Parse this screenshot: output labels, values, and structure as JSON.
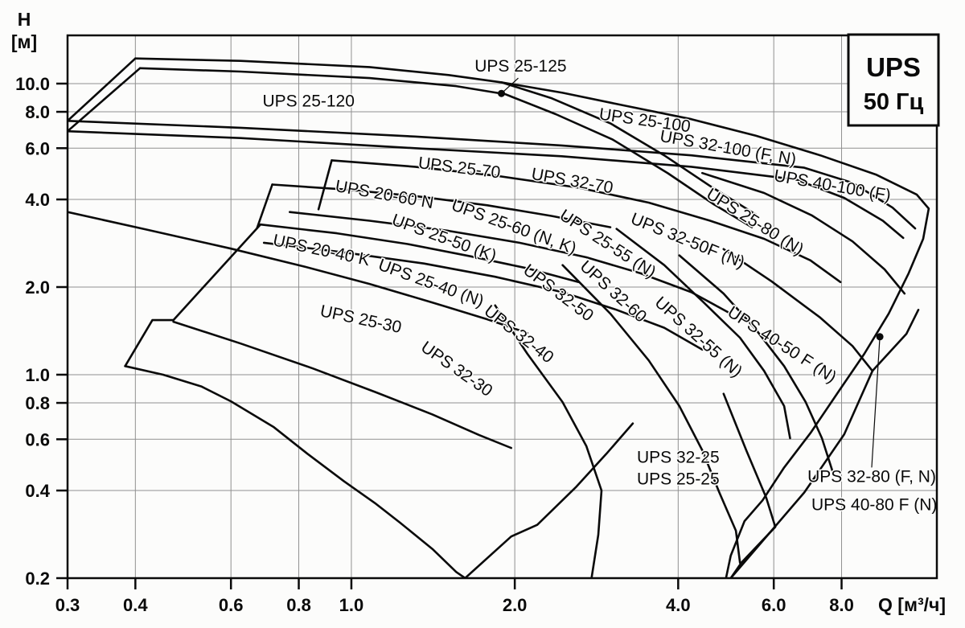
{
  "title_box": {
    "line1": "UPS",
    "line2": "50 Гц"
  },
  "axes": {
    "x": {
      "title": "Q [м³/ч]",
      "scale": "log",
      "ticks": [
        0.3,
        0.4,
        0.6,
        0.8,
        1.0,
        2.0,
        4.0,
        6.0,
        8.0
      ],
      "tick_labels": [
        "0.3",
        "0.4",
        "0.6",
        "0.8",
        "1.0",
        "2.0",
        "4.0",
        "6.0",
        "8.0"
      ]
    },
    "y": {
      "title_line1": "H",
      "title_line2": "[м]",
      "scale": "log",
      "ticks": [
        10.0,
        8.0,
        6.0,
        4.0,
        2.0,
        1.0,
        0.8,
        0.6,
        0.4,
        0.2
      ],
      "tick_labels": [
        "10.0",
        "8.0",
        "6.0",
        "4.0",
        "2.0",
        "1.0",
        "0.8",
        "0.6",
        "0.4",
        "0.2"
      ]
    }
  },
  "chart_data": {
    "type": "line",
    "title": "UPS 50 Гц",
    "xlabel": "Q [м³/ч]",
    "ylabel": "H [м]",
    "x_range": [
      0.3,
      12.2
    ],
    "y_range": [
      0.2,
      14.7
    ],
    "grid": true,
    "series": [
      {
        "name": "left-diagonal-25-120",
        "points": [
          [
            0.3,
            7.45
          ],
          [
            0.4,
            12.2
          ]
        ]
      },
      {
        "name": "left-diagonal-25-125",
        "points": [
          [
            0.3,
            6.86
          ],
          [
            0.408,
            11.3
          ]
        ]
      },
      {
        "name": "top-boundary-25-120",
        "points": [
          [
            0.4,
            12.2
          ],
          [
            0.625,
            11.97
          ],
          [
            1.08,
            11.4
          ],
          [
            1.51,
            10.7
          ],
          [
            1.89,
            10.1
          ],
          [
            2.34,
            8.9
          ],
          [
            3.0,
            7.3
          ],
          [
            3.77,
            5.67
          ],
          [
            4.58,
            4.45
          ],
          [
            5.56,
            3.55
          ]
        ]
      },
      {
        "name": "top-boundary-25-125",
        "points": [
          [
            0.408,
            11.3
          ],
          [
            0.625,
            11.0
          ],
          [
            1.08,
            10.45
          ],
          [
            1.56,
            9.8
          ],
          [
            1.92,
            9.2
          ],
          [
            2.38,
            7.85
          ],
          [
            3.03,
            6.42
          ],
          [
            3.83,
            4.92
          ],
          [
            4.65,
            3.85
          ],
          [
            5.47,
            3.21
          ]
        ]
      },
      {
        "name": "upper-band-25-70-top",
        "points": [
          [
            0.3,
            7.45
          ],
          [
            0.625,
            7.05
          ],
          [
            1.31,
            6.58
          ],
          [
            2.44,
            6.13
          ],
          [
            4.23,
            5.67
          ],
          [
            6.83,
            5.14
          ],
          [
            8.38,
            4.56
          ],
          [
            9.93,
            3.75
          ],
          [
            10.93,
            3.18
          ]
        ]
      },
      {
        "name": "upper-band-25-70-bottom",
        "points": [
          [
            0.3,
            6.86
          ],
          [
            0.625,
            6.5
          ],
          [
            1.31,
            6.0
          ],
          [
            2.44,
            5.63
          ],
          [
            4.23,
            5.18
          ],
          [
            6.6,
            4.68
          ],
          [
            8.09,
            4.05
          ],
          [
            9.53,
            3.38
          ],
          [
            10.39,
            2.95
          ]
        ]
      },
      {
        "name": "outer-right-boundary-25-100-40-100",
        "points": [
          [
            1.89,
            10.1
          ],
          [
            2.45,
            9.3
          ],
          [
            3.19,
            8.4
          ],
          [
            4.23,
            7.55
          ],
          [
            5.56,
            6.62
          ],
          [
            7.31,
            5.67
          ],
          [
            9.28,
            4.86
          ],
          [
            11.0,
            4.16
          ],
          [
            11.58,
            3.72
          ],
          [
            11.31,
            2.93
          ],
          [
            10.63,
            2.23
          ],
          [
            9.77,
            1.62
          ],
          [
            8.81,
            1.18
          ],
          [
            7.88,
            0.87
          ],
          [
            7.01,
            0.63
          ],
          [
            6.27,
            0.48
          ],
          [
            5.72,
            0.37
          ],
          [
            5.3,
            0.314
          ],
          [
            5.0,
            0.239
          ],
          [
            4.9,
            0.2
          ]
        ]
      },
      {
        "name": "left-diagonal-25-70",
        "points": [
          [
            0.87,
            3.7
          ],
          [
            0.92,
            5.45
          ]
        ]
      },
      {
        "name": "band-32-70-bottom",
        "points": [
          [
            0.92,
            5.45
          ],
          [
            1.31,
            5.18
          ],
          [
            1.84,
            4.83
          ],
          [
            2.62,
            4.39
          ],
          [
            3.53,
            3.9
          ],
          [
            4.58,
            3.38
          ],
          [
            5.76,
            2.93
          ],
          [
            7.01,
            2.47
          ],
          [
            7.96,
            2.08
          ]
        ]
      },
      {
        "name": "left-diagonal-20-60",
        "points": [
          [
            0.67,
            3.18
          ],
          [
            0.715,
            4.5
          ]
        ]
      },
      {
        "name": "band-20-60-top",
        "points": [
          [
            0.715,
            4.5
          ],
          [
            0.97,
            4.33
          ],
          [
            1.31,
            4.11
          ],
          [
            1.78,
            3.82
          ],
          [
            2.34,
            3.51
          ],
          [
            3.0,
            3.21
          ]
        ]
      },
      {
        "name": "band-25-50-top",
        "points": [
          [
            0.77,
            3.62
          ],
          [
            1.08,
            3.38
          ],
          [
            1.51,
            3.12
          ],
          [
            2.04,
            2.84
          ],
          [
            2.71,
            2.53
          ],
          [
            3.41,
            2.23
          ],
          [
            4.23,
            1.92
          ],
          [
            5.0,
            1.62
          ]
        ]
      },
      {
        "name": "band-25-40-top",
        "points": [
          [
            0.69,
            2.84
          ],
          [
            0.97,
            2.63
          ],
          [
            1.36,
            2.41
          ],
          [
            1.84,
            2.17
          ],
          [
            2.45,
            1.92
          ],
          [
            3.08,
            1.67
          ],
          [
            3.77,
            1.45
          ],
          [
            4.43,
            1.22
          ]
        ]
      },
      {
        "name": "left-diagonal-20-40-notched",
        "points": [
          [
            0.68,
            3.28
          ],
          [
            0.47,
            1.54
          ],
          [
            0.43,
            1.54
          ],
          [
            0.383,
            1.07
          ]
        ]
      },
      {
        "name": "band-20-40-top",
        "points": [
          [
            0.68,
            3.28
          ],
          [
            0.94,
            3.06
          ],
          [
            1.27,
            2.81
          ],
          [
            1.66,
            2.55
          ],
          [
            2.11,
            2.32
          ],
          [
            2.62,
            2.08
          ]
        ]
      },
      {
        "name": "band-25-30-top",
        "points": [
          [
            0.3,
            3.62
          ],
          [
            0.417,
            3.16
          ],
          [
            0.6,
            2.71
          ],
          [
            0.82,
            2.35
          ],
          [
            1.08,
            2.05
          ],
          [
            1.41,
            1.77
          ],
          [
            1.78,
            1.55
          ],
          [
            2.11,
            1.39
          ]
        ]
      },
      {
        "name": "band-32-30-top",
        "points": [
          [
            0.47,
            1.52
          ],
          [
            0.625,
            1.28
          ],
          [
            0.85,
            1.05
          ],
          [
            1.11,
            0.87
          ],
          [
            1.41,
            0.73
          ],
          [
            1.72,
            0.62
          ],
          [
            1.97,
            0.56
          ]
        ]
      },
      {
        "name": "lower-left-boundary",
        "points": [
          [
            0.383,
            1.07
          ],
          [
            0.45,
            1.0
          ],
          [
            0.53,
            0.91
          ],
          [
            0.6,
            0.81
          ],
          [
            0.72,
            0.66
          ],
          [
            0.83,
            0.535
          ],
          [
            0.97,
            0.43
          ],
          [
            1.11,
            0.36
          ],
          [
            1.23,
            0.31
          ],
          [
            1.41,
            0.252
          ],
          [
            1.56,
            0.21
          ],
          [
            1.62,
            0.2
          ]
        ]
      },
      {
        "name": "lower-rising-edge-32-30",
        "points": [
          [
            1.62,
            0.2
          ],
          [
            1.97,
            0.278
          ],
          [
            2.2,
            0.305
          ],
          [
            2.59,
            0.41
          ],
          [
            2.95,
            0.535
          ],
          [
            3.3,
            0.68
          ]
        ]
      },
      {
        "name": "right-edge-32-50F",
        "points": [
          [
            3.08,
            3.17
          ],
          [
            3.77,
            2.38
          ],
          [
            4.43,
            1.79
          ],
          [
            5.2,
            1.34
          ],
          [
            5.76,
            1.03
          ],
          [
            6.27,
            0.78
          ],
          [
            6.43,
            0.605
          ]
        ]
      },
      {
        "name": "right-edge-40-50",
        "points": [
          [
            4.02,
            2.57
          ],
          [
            4.85,
            1.9
          ],
          [
            5.56,
            1.43
          ],
          [
            6.27,
            1.07
          ],
          [
            6.87,
            0.805
          ],
          [
            7.36,
            0.605
          ],
          [
            7.69,
            0.469
          ]
        ]
      },
      {
        "name": "right-edge-32-55",
        "points": [
          [
            2.45,
            2.38
          ],
          [
            3.0,
            1.62
          ],
          [
            3.53,
            1.12
          ],
          [
            4.02,
            0.78
          ],
          [
            4.43,
            0.55
          ],
          [
            4.76,
            0.395
          ],
          [
            5.11,
            0.291
          ],
          [
            5.2,
            0.226
          ]
        ]
      },
      {
        "name": "right-edge-32-40",
        "points": [
          [
            1.84,
            1.73
          ],
          [
            2.11,
            1.18
          ],
          [
            2.45,
            0.805
          ],
          [
            2.71,
            0.568
          ],
          [
            2.89,
            0.4
          ],
          [
            2.85,
            0.282
          ],
          [
            2.77,
            0.2
          ]
        ]
      },
      {
        "name": "envelope-25-25-right-edge",
        "points": [
          [
            4.85,
            0.86
          ],
          [
            5.34,
            0.55
          ],
          [
            5.81,
            0.378
          ],
          [
            6.04,
            0.3
          ],
          [
            5.23,
            0.226
          ],
          [
            5.0,
            0.2
          ]
        ]
      },
      {
        "name": "rising-edge-32-80",
        "points": [
          [
            5.0,
            0.2
          ],
          [
            6.83,
            0.394
          ],
          [
            8.09,
            0.624
          ],
          [
            9.12,
            1.03
          ]
        ]
      },
      {
        "name": "top-edge-32-80",
        "points": [
          [
            4.85,
            2.7
          ],
          [
            5.95,
            2.09
          ],
          [
            7.31,
            1.57
          ],
          [
            8.38,
            1.255
          ],
          [
            9.12,
            1.03
          ]
        ]
      },
      {
        "name": "ne-edge-32-80",
        "points": [
          [
            9.12,
            1.03
          ],
          [
            10.53,
            1.38
          ],
          [
            11.08,
            1.67
          ]
        ]
      },
      {
        "name": "band-40-100-bottom",
        "points": [
          [
            4.43,
            4.93
          ],
          [
            5.76,
            4.21
          ],
          [
            7.06,
            3.52
          ],
          [
            8.38,
            2.87
          ],
          [
            9.6,
            2.3
          ],
          [
            10.45,
            1.9
          ]
        ]
      }
    ],
    "curve_labels": [
      {
        "text": "UPS 25-120",
        "q": 0.834,
        "h": 8.63,
        "rot": 0
      },
      {
        "text": "UPS 25-125",
        "q": 2.05,
        "h": 11.4,
        "rot": 0
      },
      {
        "text": "UPS 25-100",
        "q": 3.47,
        "h": 7.42,
        "rot": 8
      },
      {
        "text": "UPS 32-100 (F, N)",
        "q": 4.94,
        "h": 5.97,
        "rot": 10
      },
      {
        "text": "UPS 40-100 (F)",
        "q": 7.69,
        "h": 4.43,
        "rot": 10
      },
      {
        "text": "UPS 25-70",
        "q": 1.58,
        "h": 5.1,
        "rot": 7
      },
      {
        "text": "UPS 32-70",
        "q": 2.55,
        "h": 4.6,
        "rot": 10
      },
      {
        "text": "UPS 20-60 N",
        "q": 1.15,
        "h": 4.13,
        "rot": 10
      },
      {
        "text": "UPS 25-60 (N, K)",
        "q": 1.99,
        "h": 3.2,
        "rot": 20
      },
      {
        "text": "UPS 25-55 (N)",
        "q": 2.96,
        "h": 2.8,
        "rot": 33
      },
      {
        "text": "UPS 25-50 (K)",
        "q": 1.48,
        "h": 2.93,
        "rot": 20
      },
      {
        "text": "UPS 20-40 K",
        "q": 0.88,
        "h": 2.66,
        "rot": 12
      },
      {
        "text": "UPS 25-40 (N)",
        "q": 1.4,
        "h": 2.05,
        "rot": 20
      },
      {
        "text": "UPS 32-50",
        "q": 2.4,
        "h": 1.9,
        "rot": 37
      },
      {
        "text": "UPS 32-60",
        "q": 3.03,
        "h": 1.92,
        "rot": 42
      },
      {
        "text": "UPS 25-30",
        "q": 1.04,
        "h": 1.54,
        "rot": 12
      },
      {
        "text": "UPS 32-40",
        "q": 2.03,
        "h": 1.37,
        "rot": 38
      },
      {
        "text": "UPS 32-30",
        "q": 1.56,
        "h": 1.04,
        "rot": 35
      },
      {
        "text": "UPS 32-55 (N)",
        "q": 4.35,
        "h": 1.34,
        "rot": 42
      },
      {
        "text": "UPS 32-50F (N)",
        "q": 4.16,
        "h": 2.87,
        "rot": 22
      },
      {
        "text": "UPS 25-80 (N)",
        "q": 5.53,
        "h": 3.33,
        "rot": 32
      },
      {
        "text": "UPS 40-50 F (N)",
        "q": 6.2,
        "h": 1.26,
        "rot": 33
      },
      {
        "text": "UPS 32-25",
        "q": 4.0,
        "h": 0.516,
        "rot": 0
      },
      {
        "text": "UPS 25-25",
        "q": 4.0,
        "h": 0.434,
        "rot": 0
      },
      {
        "text": "UPS 32-80 (F, N)",
        "q": 9.09,
        "h": 0.443,
        "rot": 0
      },
      {
        "text": "UPS 40-80 F (N)",
        "q": 9.19,
        "h": 0.354,
        "rot": 0
      }
    ],
    "markers": [
      {
        "name": "dot-25-125",
        "q": 1.89,
        "h": 9.25,
        "leader_to": [
          2.03,
          10.45
        ]
      },
      {
        "name": "dot-32-80",
        "q": 9.41,
        "h": 1.35,
        "leader_to": [
          9.09,
          0.48
        ]
      }
    ],
    "colors": {
      "curve": "#0a0a0a",
      "grid": "#909090",
      "background": "#fcfcfb",
      "text": "#0a0a0a"
    }
  }
}
